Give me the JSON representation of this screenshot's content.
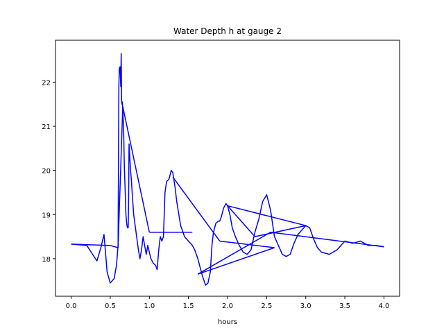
{
  "chart_data": {
    "type": "line",
    "title": "Water Depth h at gauge 2",
    "xlabel": "hours",
    "ylabel": "",
    "xlim": [
      -0.2,
      4.2
    ],
    "ylim": [
      17.15,
      22.95
    ],
    "x_ticks": [
      0.0,
      0.5,
      1.0,
      1.5,
      2.0,
      2.5,
      3.0,
      3.5,
      4.0
    ],
    "x_tick_labels": [
      "0.0",
      "0.5",
      "1.0",
      "1.5",
      "2.0",
      "2.5",
      "3.0",
      "3.5",
      "4.0"
    ],
    "y_ticks": [
      18,
      19,
      20,
      21,
      22
    ],
    "y_tick_labels": [
      "18",
      "19",
      "20",
      "21",
      "22"
    ],
    "grid": false,
    "color": "#0000ff",
    "series": [
      {
        "values_note": "single trace",
        "x": [
          0.0,
          0.2,
          0.33,
          0.38,
          0.42,
          0.46,
          0.5,
          0.55,
          0.58,
          0.6,
          0.61,
          0.615,
          0.625,
          0.635,
          0.64,
          0.645,
          0.65,
          0.655,
          0.66,
          0.665,
          0.67,
          0.675,
          0.68,
          0.69,
          0.7,
          0.71,
          0.72,
          0.73,
          0.735,
          0.74,
          0.75,
          0.76,
          0.77,
          0.78,
          0.8,
          0.83,
          0.86,
          0.88,
          0.9,
          0.92,
          0.94,
          0.96,
          0.98,
          1.0,
          1.02,
          1.05,
          1.08,
          1.1,
          1.12,
          1.14,
          1.16,
          1.18,
          1.2,
          1.22,
          1.25,
          1.28,
          1.3,
          1.33,
          1.35,
          1.4,
          1.45,
          1.5,
          1.55,
          1.58,
          1.6,
          1.62,
          1.65,
          1.68,
          1.7,
          1.72,
          1.75,
          1.78,
          1.8,
          1.82,
          1.85,
          1.88,
          1.9,
          1.92,
          1.95,
          1.98,
          2.0,
          2.03,
          2.06,
          2.1,
          2.15,
          2.2,
          2.25,
          2.3,
          2.35,
          2.4,
          2.45,
          2.5,
          2.55,
          2.6,
          2.65,
          2.7,
          2.75,
          2.8,
          2.85,
          2.9,
          3.0,
          3.05,
          3.1,
          3.15,
          3.2,
          3.3,
          3.4,
          3.5,
          3.6,
          3.7,
          3.8,
          3.9,
          4.0
        ],
        "y": [
          18.33,
          18.3,
          17.95,
          18.25,
          18.55,
          17.7,
          17.45,
          17.55,
          17.85,
          18.3,
          21.85,
          22.3,
          22.35,
          21.9,
          22.65,
          21.6,
          21.5,
          21.55,
          21.4,
          21.2,
          21.0,
          20.6,
          20.1,
          19.6,
          19.0,
          18.8,
          18.7,
          18.7,
          19.3,
          20.6,
          20.3,
          20.0,
          19.8,
          19.5,
          19.0,
          18.6,
          18.2,
          18.0,
          18.2,
          18.5,
          18.3,
          18.1,
          18.3,
          18.15,
          18.0,
          17.9,
          17.85,
          17.75,
          18.2,
          18.5,
          18.4,
          18.5,
          19.5,
          19.75,
          19.8,
          20.0,
          19.95,
          19.6,
          19.3,
          18.75,
          18.5,
          18.4,
          18.3,
          18.2,
          18.1,
          18.0,
          17.8,
          17.6,
          17.5,
          17.4,
          17.45,
          17.7,
          18.3,
          18.6,
          18.8,
          18.85,
          18.85,
          18.95,
          19.15,
          19.25,
          19.2,
          19.0,
          18.7,
          18.5,
          18.3,
          18.15,
          18.1,
          18.2,
          18.6,
          18.9,
          19.3,
          19.45,
          19.1,
          18.5,
          18.3,
          18.1,
          18.05,
          18.1,
          18.35,
          18.55,
          18.75,
          18.7,
          18.45,
          18.25,
          18.15,
          18.1,
          18.2,
          18.4,
          18.35,
          18.4,
          18.3,
          18.3,
          18.27
        ]
      }
    ],
    "connectors": [
      {
        "from": [
          0.0,
          18.33
        ],
        "to": [
          0.5,
          18.3
        ]
      },
      {
        "from": [
          0.5,
          18.3
        ],
        "to": [
          0.6,
          18.25
        ]
      },
      {
        "from": [
          0.6,
          18.25
        ],
        "to": [
          0.66,
          21.45
        ]
      },
      {
        "from": [
          0.66,
          21.45
        ],
        "to": [
          1.0,
          18.6
        ]
      },
      {
        "from": [
          1.0,
          18.6
        ],
        "to": [
          1.55,
          18.6
        ]
      },
      {
        "from": [
          1.3,
          19.85
        ],
        "to": [
          1.9,
          18.4
        ]
      },
      {
        "from": [
          1.9,
          18.4
        ],
        "to": [
          2.6,
          18.25
        ]
      },
      {
        "from": [
          2.6,
          18.25
        ],
        "to": [
          1.62,
          17.65
        ]
      },
      {
        "from": [
          1.62,
          17.65
        ],
        "to": [
          2.55,
          18.6
        ]
      },
      {
        "from": [
          2.55,
          18.6
        ],
        "to": [
          4.0,
          18.27
        ]
      },
      {
        "from": [
          2.0,
          19.2
        ],
        "to": [
          3.0,
          18.75
        ]
      },
      {
        "from": [
          3.0,
          18.75
        ],
        "to": [
          2.35,
          18.5
        ]
      },
      {
        "from": [
          2.35,
          18.5
        ],
        "to": [
          2.0,
          19.2
        ]
      }
    ]
  }
}
